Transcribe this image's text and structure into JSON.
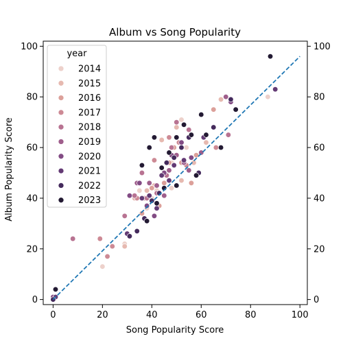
{
  "chart_data": {
    "type": "scatter",
    "title": "Album vs Song Popularity",
    "xlabel": "Song Popularity Score",
    "ylabel": "Album Popularity Score",
    "xlim": [
      -4,
      103
    ],
    "ylim": [
      -2,
      102
    ],
    "xticks": [
      0,
      20,
      40,
      60,
      80,
      100
    ],
    "yticks": [
      0,
      20,
      40,
      60,
      80,
      100
    ],
    "secondary_y_axis": true,
    "grid": false,
    "legend": {
      "title": "year",
      "placement": "top-left"
    },
    "reference_line": {
      "style": "dashed",
      "color": "#1f77b4",
      "x": [
        0,
        100
      ],
      "y": [
        0,
        96
      ]
    },
    "series": [
      {
        "name": "2014",
        "color": "#edd1cb",
        "points": [
          [
            20,
            13
          ],
          [
            29,
            22
          ],
          [
            35,
            43
          ],
          [
            42,
            43
          ],
          [
            40,
            40
          ],
          [
            48,
            54
          ],
          [
            52,
            71
          ],
          [
            54,
            60
          ],
          [
            87,
            80
          ],
          [
            48,
            44
          ],
          [
            38,
            36
          ]
        ]
      },
      {
        "name": "2015",
        "color": "#e6b9b0",
        "points": [
          [
            29,
            21
          ],
          [
            33,
            40
          ],
          [
            38,
            43
          ],
          [
            41,
            45
          ],
          [
            43,
            42
          ],
          [
            44,
            63
          ],
          [
            50,
            68
          ],
          [
            52,
            47
          ],
          [
            57,
            54
          ],
          [
            62,
            62
          ],
          [
            68,
            79
          ]
        ]
      },
      {
        "name": "2016",
        "color": "#dca09a",
        "points": [
          [
            36,
            34
          ],
          [
            40,
            44
          ],
          [
            43,
            37
          ],
          [
            45,
            46
          ],
          [
            47,
            54
          ],
          [
            49,
            60
          ],
          [
            52,
            54
          ],
          [
            56,
            46
          ],
          [
            58,
            57
          ],
          [
            65,
            75
          ]
        ]
      },
      {
        "name": "2017",
        "color": "#cd8a95",
        "points": [
          [
            19,
            24
          ],
          [
            22,
            17
          ],
          [
            24,
            21
          ],
          [
            34,
            40
          ],
          [
            37,
            40
          ],
          [
            41,
            55
          ],
          [
            47,
            64
          ],
          [
            51,
            62
          ],
          [
            54,
            53
          ],
          [
            66,
            60
          ]
        ]
      },
      {
        "name": "2018",
        "color": "#b87392",
        "points": [
          [
            8,
            24
          ],
          [
            29,
            33
          ],
          [
            33,
            41
          ],
          [
            36,
            50
          ],
          [
            38,
            40
          ],
          [
            42,
            42
          ],
          [
            46,
            49
          ],
          [
            48,
            60
          ],
          [
            50,
            70
          ],
          [
            55,
            67
          ],
          [
            71,
            65
          ]
        ]
      },
      {
        "name": "2019",
        "color": "#9f5e8c",
        "points": [
          [
            34,
            46
          ],
          [
            39,
            46
          ],
          [
            42,
            45
          ],
          [
            45,
            41
          ],
          [
            47,
            51
          ],
          [
            50,
            57
          ],
          [
            53,
            54
          ],
          [
            55,
            51
          ],
          [
            60,
            58
          ],
          [
            70,
            80
          ]
        ]
      },
      {
        "name": "2020",
        "color": "#824b84",
        "points": [
          [
            0,
            1
          ],
          [
            31,
            41
          ],
          [
            35,
            46
          ],
          [
            38,
            37
          ],
          [
            41,
            33
          ],
          [
            45,
            50
          ],
          [
            48,
            57
          ],
          [
            52,
            62
          ],
          [
            56,
            56
          ],
          [
            72,
            78
          ]
        ]
      },
      {
        "name": "2021",
        "color": "#633a74",
        "points": [
          [
            1,
            1
          ],
          [
            30,
            26
          ],
          [
            36,
            40
          ],
          [
            39,
            41
          ],
          [
            42,
            36
          ],
          [
            44,
            49
          ],
          [
            47,
            47
          ],
          [
            49,
            53
          ],
          [
            53,
            55
          ],
          [
            61,
            64
          ],
          [
            90,
            83
          ]
        ]
      },
      {
        "name": "2022",
        "color": "#442a5c",
        "points": [
          [
            0,
            0
          ],
          [
            31,
            25
          ],
          [
            34,
            27
          ],
          [
            37,
            32
          ],
          [
            40,
            39
          ],
          [
            43,
            42
          ],
          [
            46,
            54
          ],
          [
            49,
            56
          ],
          [
            52,
            60
          ],
          [
            55,
            64
          ],
          [
            59,
            50
          ],
          [
            65,
            68
          ],
          [
            72,
            79
          ]
        ]
      },
      {
        "name": "2023",
        "color": "#231a33",
        "points": [
          [
            1,
            4
          ],
          [
            36,
            53
          ],
          [
            39,
            60
          ],
          [
            41,
            64
          ],
          [
            44,
            52
          ],
          [
            47,
            58
          ],
          [
            50,
            64
          ],
          [
            53,
            69
          ],
          [
            56,
            65
          ],
          [
            60,
            73
          ],
          [
            62,
            65
          ],
          [
            68,
            60
          ],
          [
            74,
            75
          ],
          [
            88,
            96
          ],
          [
            45,
            44
          ],
          [
            42,
            38
          ],
          [
            38,
            31
          ],
          [
            50,
            45
          ],
          [
            58,
            49
          ]
        ]
      }
    ]
  }
}
